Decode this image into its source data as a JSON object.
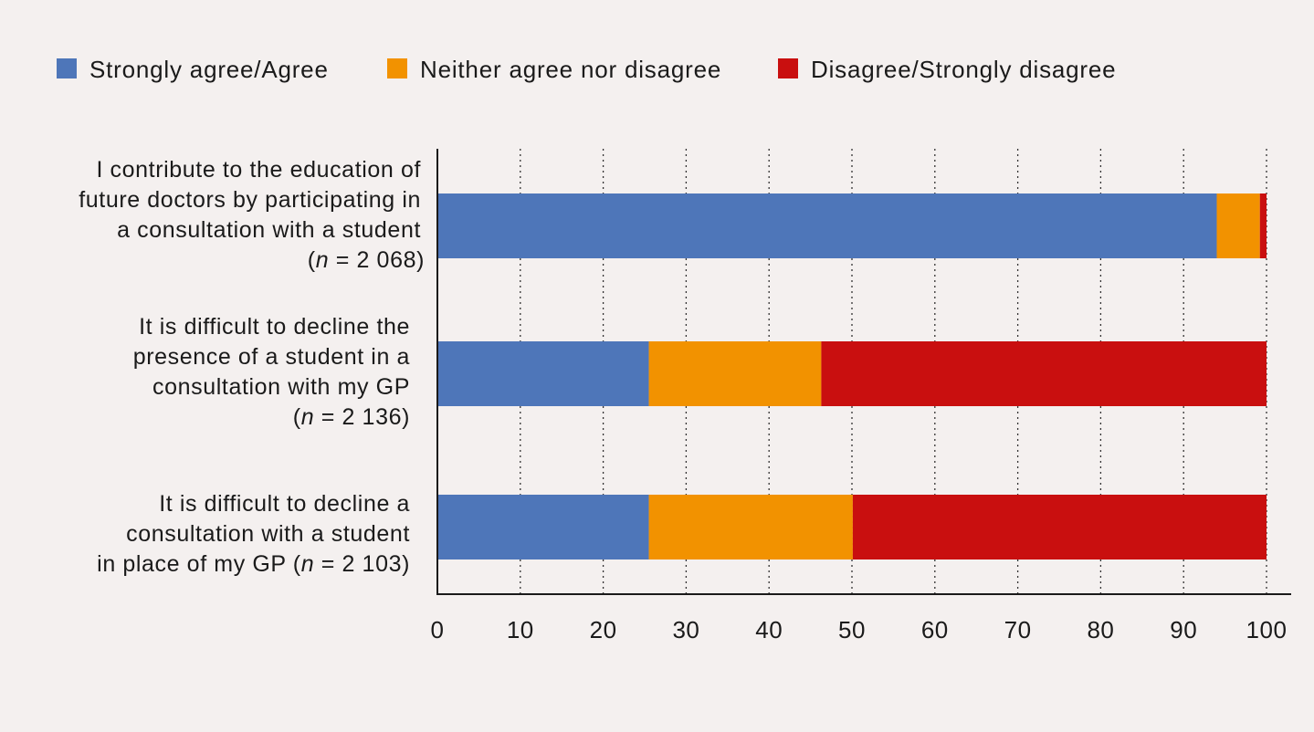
{
  "chart_data": {
    "type": "bar",
    "orientation": "horizontal",
    "stacked": true,
    "categories": [
      {
        "lines": [
          "I contribute to the education of",
          "future doctors by participating in",
          "a consultation with a student"
        ],
        "n_label": [
          "(",
          "n",
          " = 2 068)"
        ]
      },
      {
        "lines": [
          "It is difficult to decline the",
          "presence of a student in a",
          "consultation with my GP"
        ],
        "n_label": [
          "(",
          "n",
          " = 2 136)"
        ]
      },
      {
        "lines": [
          "It is difficult to decline a",
          "consultation with a student"
        ],
        "n_label": [
          "in place of my GP (",
          "n",
          " = 2 103)"
        ]
      }
    ],
    "series": [
      {
        "name": "Strongly agree/Agree",
        "color": "#4e76b9",
        "values": [
          94,
          25.5,
          25.5
        ]
      },
      {
        "name": "Neither agree nor disagree",
        "color": "#f29200",
        "values": [
          5.2,
          20.8,
          24.6
        ]
      },
      {
        "name": "Disagree/Strongly disagree",
        "color": "#c90f0f",
        "values": [
          0.8,
          53.7,
          49.9
        ]
      }
    ],
    "xlim": [
      0,
      100
    ],
    "xticks": [
      "0",
      "10",
      "20",
      "30",
      "40",
      "50",
      "60",
      "70",
      "80",
      "90",
      "100"
    ],
    "grid": "vertical-dotted",
    "legend": "top-left"
  }
}
